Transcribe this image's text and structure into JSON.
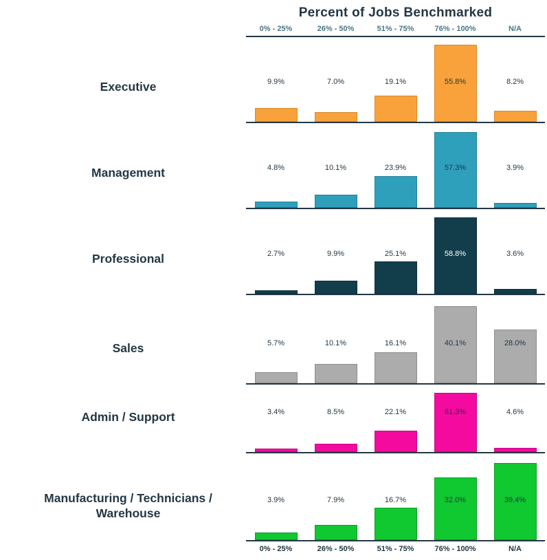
{
  "title": "Percent of Jobs Benchmarked",
  "column_headers": [
    "0% - 25%",
    "26% - 50%",
    "51% - 75%",
    "76% - 100%",
    "N/A"
  ],
  "footer_labels": [
    "0% - 25%",
    "26% - 50%",
    "51% - 75%",
    "76% - 100%",
    "N/A"
  ],
  "colors": {
    "title_text": "#233744",
    "header_text": "#4A7585",
    "footer_text": "#233744",
    "axis_line": "#233744",
    "value_label_text": "#233744",
    "value_label_text_on_dark": "#FFFFFF"
  },
  "chart_data": {
    "type": "bar",
    "layout": "small-multiples-by-row",
    "title": "Percent of Jobs Benchmarked",
    "categories": [
      "0% - 25%",
      "26% - 50%",
      "51% - 75%",
      "76% - 100%",
      "N/A"
    ],
    "value_unit": "percent",
    "bars_normalized_per_row": true,
    "value_axis_hidden": true,
    "grid": false,
    "legend": "none",
    "series": [
      {
        "name": "Executive",
        "color": "#F9A23B",
        "border_color": "#D9882A",
        "values": [
          9.9,
          7.0,
          19.1,
          55.8,
          8.2
        ],
        "labels": [
          "9.9%",
          "7.0%",
          "19.1%",
          "55.8%",
          "8.2%"
        ]
      },
      {
        "name": "Management",
        "color": "#2FA0BC",
        "border_color": "#21809A",
        "values": [
          4.8,
          10.1,
          23.9,
          57.3,
          3.9
        ],
        "labels": [
          "4.8%",
          "10.1%",
          "23.9%",
          "57.3%",
          "3.9%"
        ]
      },
      {
        "name": "Professional",
        "color": "#123E4C",
        "border_color": "#0C2E39",
        "values": [
          2.7,
          9.9,
          25.1,
          58.8,
          3.6
        ],
        "labels": [
          "2.7%",
          "9.9%",
          "25.1%",
          "58.8%",
          "3.6%"
        ]
      },
      {
        "name": "Sales",
        "color": "#ACACAC",
        "border_color": "#8F8F8F",
        "values": [
          5.7,
          10.1,
          16.1,
          40.1,
          28.0
        ],
        "labels": [
          "5.7%",
          "10.1%",
          "16.1%",
          "40.1%",
          "28.0%"
        ]
      },
      {
        "name": "Admin / Support",
        "color": "#F40A9F",
        "border_color": "#C70982",
        "values": [
          3.4,
          8.5,
          22.1,
          61.3,
          4.6
        ],
        "labels": [
          "3.4%",
          "8.5%",
          "22.1%",
          "61.3%",
          "4.6%"
        ]
      },
      {
        "name": "Manufacturing / Technicians / Warehouse",
        "color": "#10C830",
        "border_color": "#0C9E26",
        "values": [
          3.9,
          7.9,
          16.7,
          32.0,
          39.4
        ],
        "labels": [
          "3.9%",
          "7.9%",
          "16.7%",
          "32.0%",
          "39.4%"
        ]
      }
    ]
  }
}
